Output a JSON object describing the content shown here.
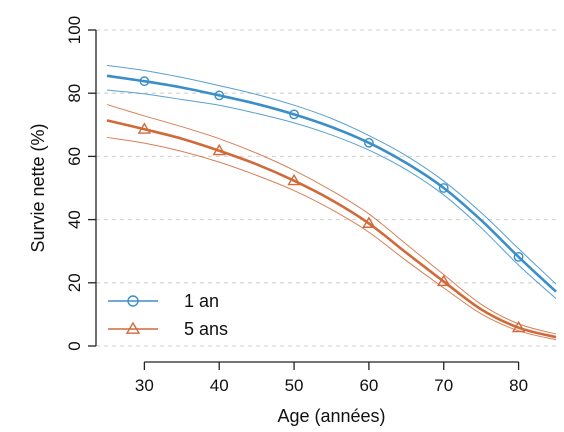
{
  "chart_data": {
    "type": "line",
    "xlabel": "Age (années)",
    "ylabel": "Survie nette (%)",
    "xlim": [
      23,
      85
    ],
    "ylim": [
      0,
      100
    ],
    "xticks": [
      30,
      40,
      50,
      60,
      70,
      80
    ],
    "yticks": [
      0,
      20,
      40,
      60,
      80,
      100
    ],
    "grid": "horizontal dashed",
    "legend_position": "bottom-left",
    "series": [
      {
        "name": "1 an",
        "marker": "circle",
        "color": "#3a8fc9",
        "x": [
          25,
          30,
          35,
          40,
          45,
          50,
          55,
          60,
          65,
          70,
          75,
          80,
          85
        ],
        "y": [
          85.5,
          83.8,
          81.8,
          79.3,
          76.6,
          73.3,
          69.3,
          64.3,
          57.9,
          50.0,
          39.8,
          28.2,
          17.2
        ],
        "lower": [
          81.0,
          79.8,
          78.0,
          76.2,
          73.6,
          70.6,
          66.8,
          62.0,
          55.8,
          47.8,
          37.4,
          25.6,
          15.0
        ],
        "upper": [
          88.8,
          87.2,
          85.0,
          82.4,
          79.6,
          76.2,
          72.0,
          66.6,
          60.2,
          52.2,
          42.2,
          30.8,
          19.6
        ],
        "marker_x": [
          30,
          40,
          50,
          60,
          70,
          80
        ]
      },
      {
        "name": "5 ans",
        "marker": "triangle",
        "color": "#d06a3a",
        "x": [
          25,
          30,
          35,
          40,
          45,
          50,
          55,
          60,
          65,
          70,
          75,
          80,
          85
        ],
        "y": [
          71.4,
          68.6,
          65.6,
          61.8,
          57.5,
          52.3,
          46.2,
          38.8,
          29.5,
          20.4,
          11.6,
          5.8,
          2.8
        ],
        "lower": [
          66.0,
          64.2,
          61.6,
          58.2,
          54.0,
          49.2,
          43.2,
          36.0,
          27.0,
          18.4,
          10.2,
          4.8,
          2.0
        ],
        "upper": [
          76.4,
          72.8,
          69.4,
          65.6,
          61.0,
          55.6,
          49.2,
          41.8,
          32.2,
          22.6,
          13.2,
          7.0,
          3.8
        ],
        "marker_x": [
          30,
          40,
          50,
          60,
          70,
          80
        ]
      }
    ]
  }
}
